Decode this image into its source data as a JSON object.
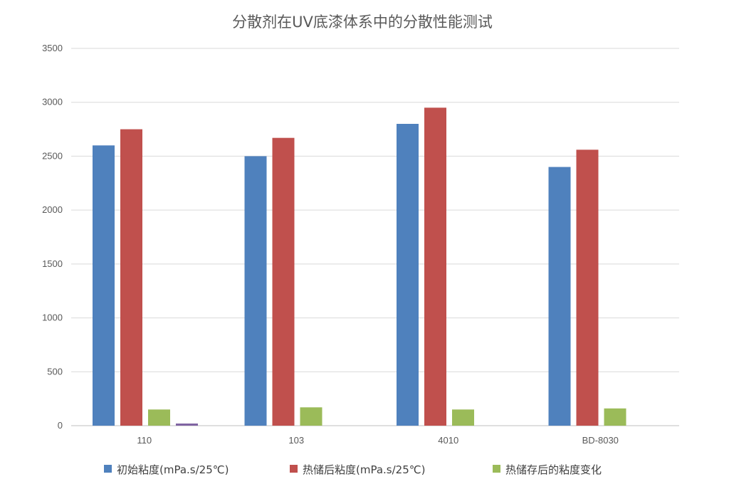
{
  "chart_data": {
    "type": "bar",
    "title": "分散剂在UV底漆体系中的分散性能测试",
    "xlabel": "",
    "ylabel": "",
    "categories": [
      "110",
      "103",
      "4010",
      "BD-8030"
    ],
    "series": [
      {
        "name": "初始粘度(mPa.s/25℃)",
        "color": "#4f81bd",
        "values": [
          2600,
          2500,
          2800,
          2400
        ]
      },
      {
        "name": "热储后粘度(mPa.s/25℃)",
        "color": "#c0504d",
        "values": [
          2750,
          2670,
          2950,
          2560
        ]
      },
      {
        "name": "热储存后的粘度变化",
        "color": "#9bbb59",
        "values": [
          150,
          170,
          150,
          160
        ]
      },
      {
        "name": "",
        "color": "#8064a2",
        "values": [
          15,
          0,
          0,
          0
        ]
      }
    ],
    "ylim": [
      0,
      3500
    ],
    "yticks": [
      "0",
      "500",
      "1000",
      "1500",
      "2000",
      "2500",
      "3000",
      "3500"
    ],
    "grid": true,
    "legend_position": "bottom"
  }
}
